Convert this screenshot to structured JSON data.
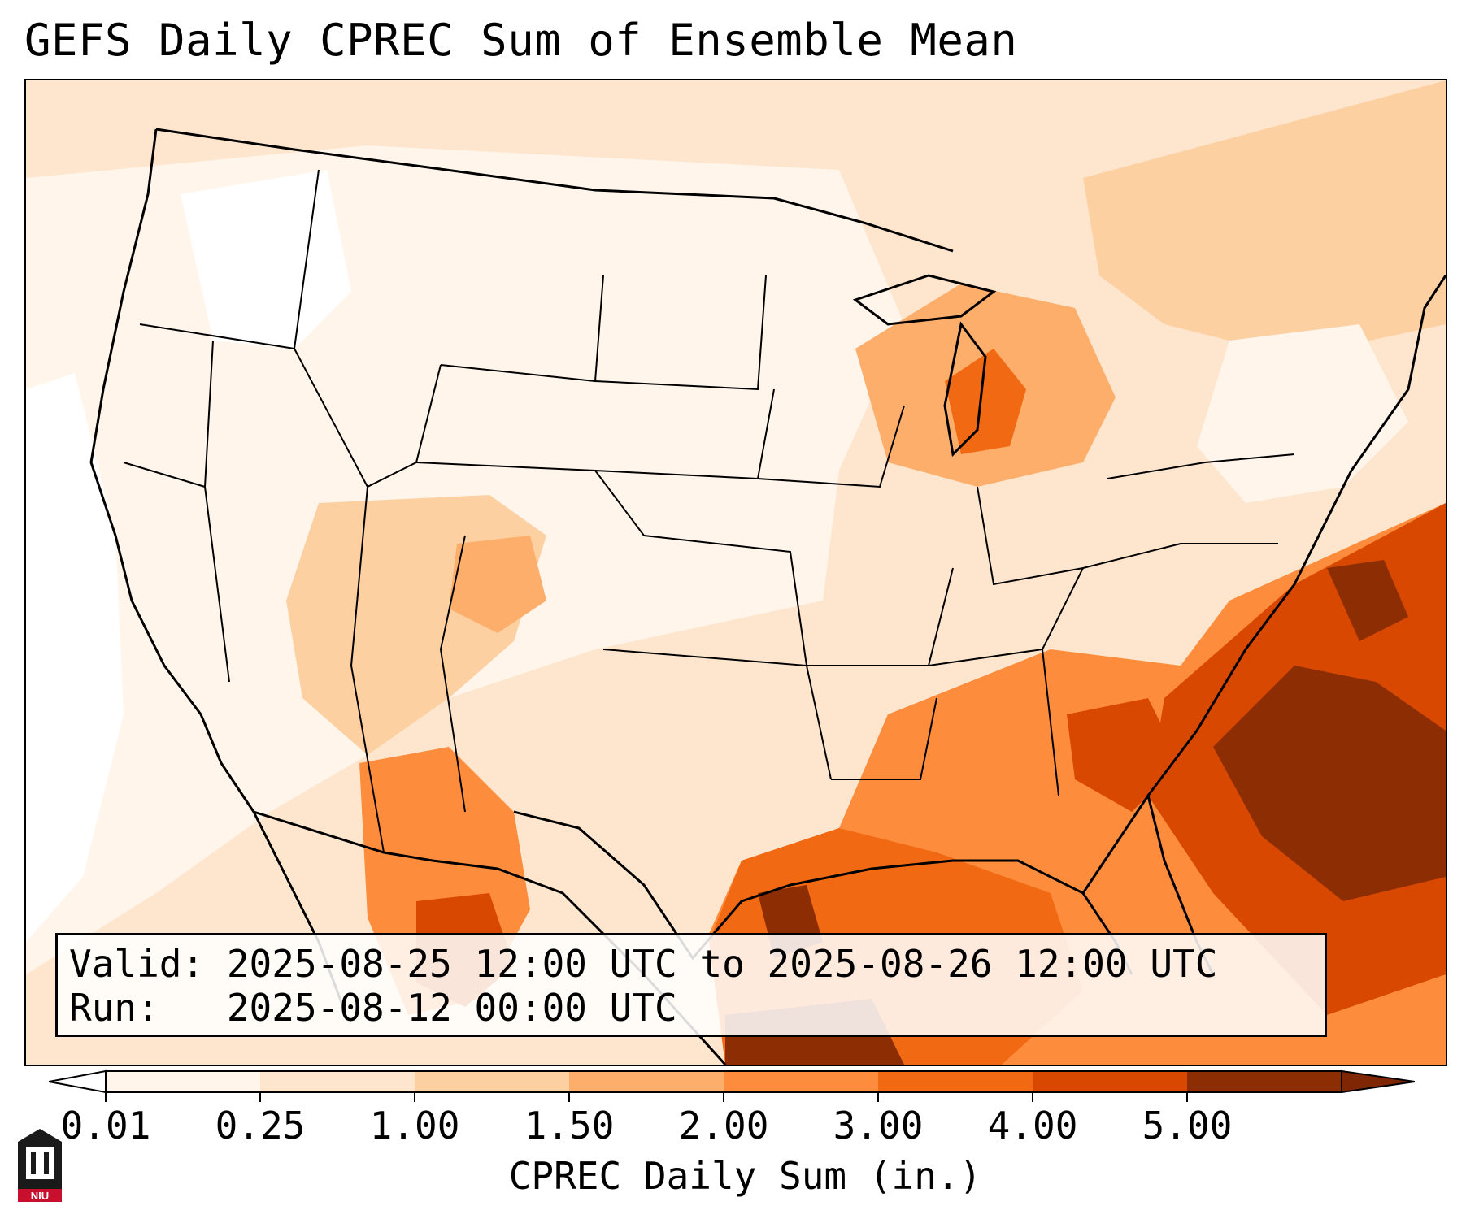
{
  "title": "GEFS Daily CPREC Sum of Ensemble Mean",
  "info": {
    "valid_line": "Valid: 2025-08-25 12:00 UTC to 2025-08-26 12:00 UTC",
    "run_line": "Run:   2025-08-12 00:00 UTC"
  },
  "colorbar": {
    "label": "CPREC Daily Sum (in.)",
    "ticks": [
      "0.01",
      "0.25",
      "1.00",
      "1.50",
      "2.00",
      "3.00",
      "4.00",
      "5.00"
    ],
    "colors": [
      "#fff5eb",
      "#fee6ce",
      "#fdd0a2",
      "#fdae6b",
      "#fd8d3c",
      "#f16913",
      "#d94801",
      "#8c2d04"
    ],
    "under_color": "#ffffff",
    "over_color": "#7f2704",
    "extend": "both"
  },
  "logo": {
    "text": "NIU",
    "color": "#c8102e"
  }
}
